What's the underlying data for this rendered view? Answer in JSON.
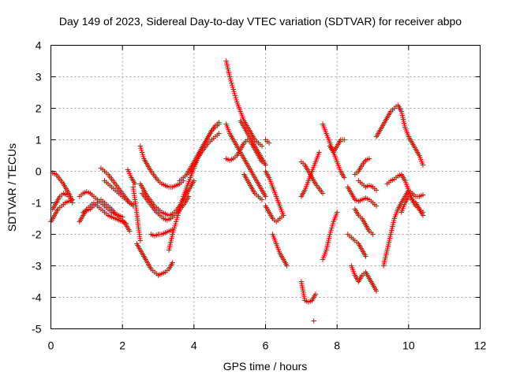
{
  "chart_data": {
    "type": "scatter",
    "title": "Day 149 of 2023, Sidereal Day-to-day VTEC variation (SDTVAR) for receiver abpo",
    "xlabel": "GPS time / hours",
    "ylabel": "SDTVAR / TECUs",
    "xlim": [
      0,
      12
    ],
    "ylim": [
      -5,
      4
    ],
    "xticks": [
      0,
      2,
      4,
      6,
      8,
      10,
      12
    ],
    "yticks": [
      -5,
      -4,
      -3,
      -2,
      -1,
      0,
      1,
      2,
      3,
      4
    ],
    "grid": true,
    "marker": "+",
    "marker_color": "#ff0000",
    "series": [
      {
        "name": "SDTVAR",
        "tracks": [
          {
            "x": [
              0.0,
              0.1,
              0.2,
              0.3,
              0.4,
              0.5,
              0.6
            ],
            "y": [
              -1.6,
              -1.4,
              -1.2,
              -1.1,
              -1.0,
              -0.95,
              -0.9
            ]
          },
          {
            "x": [
              0.05,
              0.15,
              0.25,
              0.35,
              0.45,
              0.55,
              0.6
            ],
            "y": [
              -0.05,
              -0.1,
              -0.25,
              -0.4,
              -0.6,
              -0.8,
              -1.0
            ]
          },
          {
            "x": [
              0.05,
              0.15,
              0.25,
              0.35,
              0.45,
              0.55
            ],
            "y": [
              -1.2,
              -1.0,
              -0.8,
              -0.7,
              -0.75,
              -0.85
            ]
          },
          {
            "x": [
              0.8,
              0.9,
              1.0,
              1.1,
              1.2,
              1.3,
              1.4,
              1.5,
              1.6,
              1.7,
              1.8,
              1.9,
              2.0,
              2.1
            ],
            "y": [
              -1.6,
              -1.4,
              -1.2,
              -1.1,
              -1.0,
              -1.1,
              -1.2,
              -1.3,
              -1.4,
              -1.45,
              -1.5,
              -1.55,
              -1.6,
              -1.65
            ]
          },
          {
            "x": [
              0.8,
              0.9,
              1.0,
              1.1,
              1.2,
              1.3,
              1.4,
              1.5,
              1.6,
              1.7,
              1.8,
              1.9,
              2.0
            ],
            "y": [
              -0.8,
              -0.7,
              -0.65,
              -0.7,
              -0.8,
              -0.9,
              -1.0,
              -1.1,
              -1.2,
              -1.3,
              -1.35,
              -1.4,
              -1.45
            ]
          },
          {
            "x": [
              0.9,
              1.0,
              1.1,
              1.2,
              1.3,
              1.4,
              1.5,
              1.6,
              1.7,
              1.8,
              1.9,
              2.0,
              2.1,
              2.2
            ],
            "y": [
              -1.3,
              -1.25,
              -1.2,
              -1.1,
              -1.0,
              -0.9,
              -1.0,
              -1.1,
              -1.2,
              -1.35,
              -1.45,
              -1.55,
              -1.7,
              -1.9
            ]
          },
          {
            "x": [
              1.4,
              1.5,
              1.6,
              1.7,
              1.8,
              1.9,
              2.0,
              2.1,
              2.2,
              2.3
            ],
            "y": [
              0.1,
              0.0,
              -0.1,
              -0.25,
              -0.4,
              -0.55,
              -0.7,
              -0.85,
              -1.0,
              -1.1
            ]
          },
          {
            "x": [
              1.5,
              1.6,
              1.7,
              1.8,
              1.9,
              2.0,
              2.1,
              2.2,
              2.3
            ],
            "y": [
              -0.3,
              -0.4,
              -0.5,
              -0.6,
              -0.7,
              -0.8,
              -0.9,
              -1.0,
              -1.05
            ]
          },
          {
            "x": [
              2.3,
              2.35,
              2.4,
              2.45,
              2.5
            ],
            "y": [
              -0.5,
              -0.9,
              -1.3,
              -1.8,
              -2.2
            ]
          },
          {
            "x": [
              2.15,
              2.25,
              2.35
            ],
            "y": [
              0.05,
              -0.2,
              -0.4
            ]
          },
          {
            "x": [
              2.5,
              2.55,
              2.6,
              2.7,
              2.8,
              2.9,
              3.0,
              3.1,
              3.2,
              3.3,
              3.4,
              3.5,
              3.6,
              3.7
            ],
            "y": [
              0.8,
              0.6,
              0.4,
              0.2,
              0.0,
              -0.15,
              -0.3,
              -0.4,
              -0.45,
              -0.5,
              -0.5,
              -0.45,
              -0.4,
              -0.3
            ]
          },
          {
            "x": [
              2.5,
              2.6,
              2.7,
              2.8,
              2.9,
              3.0,
              3.1,
              3.2,
              3.3,
              3.4,
              3.5,
              3.6,
              3.7,
              3.8,
              3.9,
              4.0
            ],
            "y": [
              -0.4,
              -0.6,
              -0.8,
              -0.95,
              -1.1,
              -1.2,
              -1.3,
              -1.35,
              -1.4,
              -1.35,
              -1.25,
              -1.1,
              -0.9,
              -0.7,
              -0.5,
              -0.3
            ]
          },
          {
            "x": [
              2.55,
              2.65,
              2.75,
              2.85,
              2.95,
              3.05,
              3.15,
              3.25,
              3.35,
              3.45,
              3.55,
              3.65,
              3.75,
              3.85
            ],
            "y": [
              -0.7,
              -0.85,
              -1.0,
              -1.15,
              -1.3,
              -1.4,
              -1.5,
              -1.55,
              -1.5,
              -1.4,
              -1.3,
              -1.15,
              -1.0,
              -0.8
            ]
          },
          {
            "x": [
              2.6,
              2.7,
              2.8,
              2.9,
              3.0,
              3.1,
              3.2,
              3.3,
              3.4
            ],
            "y": [
              -2.7,
              -2.9,
              -3.1,
              -3.2,
              -3.3,
              -3.25,
              -3.2,
              -3.1,
              -2.9
            ]
          },
          {
            "x": [
              2.4,
              2.5,
              2.6
            ],
            "y": [
              -2.3,
              -2.5,
              -2.7
            ]
          },
          {
            "x": [
              2.8,
              2.9,
              3.0,
              3.1,
              3.2,
              3.3,
              3.4
            ],
            "y": [
              -2.0,
              -2.05,
              -2.0,
              -2.0,
              -1.95,
              -1.9,
              -1.85
            ]
          },
          {
            "x": [
              3.3,
              3.4,
              3.5,
              3.6,
              3.7,
              3.8,
              3.9,
              4.0,
              4.1,
              4.2,
              4.3,
              4.4,
              4.5,
              4.6,
              4.7
            ],
            "y": [
              -2.5,
              -2.0,
              -1.6,
              -1.2,
              -0.8,
              -0.5,
              -0.2,
              0.1,
              0.4,
              0.7,
              0.9,
              1.1,
              1.3,
              1.4,
              1.5
            ]
          },
          {
            "x": [
              3.6,
              3.7,
              3.8,
              3.9,
              4.0,
              4.1,
              4.2,
              4.3,
              4.4,
              4.5,
              4.6,
              4.7
            ],
            "y": [
              -0.3,
              -0.2,
              -0.1,
              0.1,
              0.3,
              0.5,
              0.7,
              0.9,
              1.1,
              1.3,
              1.45,
              1.55
            ]
          },
          {
            "x": [
              3.9,
              4.0,
              4.1,
              4.2,
              4.3,
              4.4,
              4.5,
              4.6,
              4.7
            ],
            "y": [
              0.0,
              0.2,
              0.4,
              0.6,
              0.75,
              0.9,
              1.0,
              1.1,
              1.2
            ]
          },
          {
            "x": [
              4.9,
              5.0,
              5.1,
              5.2,
              5.3,
              5.4,
              5.5,
              5.6,
              5.7,
              5.8,
              5.9
            ],
            "y": [
              3.5,
              3.0,
              2.6,
              2.2,
              1.9,
              1.6,
              1.4,
              1.2,
              1.0,
              0.9,
              0.8
            ]
          },
          {
            "x": [
              4.9,
              5.0,
              5.1,
              5.2,
              5.3,
              5.4,
              5.5,
              5.6,
              5.7,
              5.8,
              5.9,
              6.0
            ],
            "y": [
              1.5,
              1.2,
              1.0,
              0.8,
              0.6,
              0.4,
              0.2,
              0.0,
              -0.2,
              -0.4,
              -0.6,
              -0.8
            ]
          },
          {
            "x": [
              4.9,
              5.0,
              5.1,
              5.2,
              5.3,
              5.4,
              5.5,
              5.6,
              5.7,
              5.8,
              5.9
            ],
            "y": [
              0.4,
              0.35,
              0.4,
              0.5,
              0.7,
              0.9,
              1.0,
              0.9,
              0.7,
              0.5,
              0.3
            ]
          },
          {
            "x": [
              5.3,
              5.4,
              5.5,
              5.6,
              5.7,
              5.8,
              5.9,
              6.0
            ],
            "y": [
              1.6,
              1.4,
              1.2,
              1.0,
              0.8,
              0.6,
              0.4,
              0.2
            ]
          },
          {
            "x": [
              5.4,
              5.5,
              5.6,
              5.7,
              5.8,
              5.9
            ],
            "y": [
              -0.1,
              -0.3,
              -0.5,
              -0.7,
              -0.8,
              -0.9
            ]
          },
          {
            "x": [
              6.0,
              6.05,
              6.1
            ],
            "y": [
              1.0,
              0.95,
              0.9
            ]
          },
          {
            "x": [
              6.0,
              6.1,
              6.2,
              6.3,
              6.4,
              6.5
            ],
            "y": [
              0.0,
              -0.2,
              -0.5,
              -0.8,
              -1.1,
              -1.4
            ]
          },
          {
            "x": [
              6.0,
              6.1,
              6.2,
              6.3,
              6.4,
              6.5
            ],
            "y": [
              -1.1,
              -1.3,
              -1.5,
              -1.6,
              -1.5,
              -1.4
            ]
          },
          {
            "x": [
              6.2,
              6.3,
              6.4,
              6.5,
              6.6
            ],
            "y": [
              -2.0,
              -2.3,
              -2.6,
              -2.8,
              -3.0
            ]
          },
          {
            "x": [
              7.0,
              7.05,
              7.1,
              7.2,
              7.3,
              7.4
            ],
            "y": [
              -3.5,
              -3.8,
              -4.1,
              -4.15,
              -4.1,
              -3.9
            ]
          },
          {
            "x": [
              7.35
            ],
            "y": [
              -4.75
            ]
          },
          {
            "x": [
              7.0,
              7.1,
              7.2,
              7.3,
              7.4,
              7.5,
              7.6
            ],
            "y": [
              0.3,
              0.2,
              0.0,
              -0.2,
              -0.4,
              -0.55,
              -0.7
            ]
          },
          {
            "x": [
              7.0,
              7.1,
              7.2,
              7.3,
              7.4,
              7.5
            ],
            "y": [
              -0.8,
              -0.6,
              -0.3,
              0.0,
              0.3,
              0.6
            ]
          },
          {
            "x": [
              7.6,
              7.7,
              7.8,
              7.9,
              8.0,
              8.1,
              8.2
            ],
            "y": [
              1.5,
              1.2,
              0.9,
              0.6,
              0.3,
              0.0,
              -0.2
            ]
          },
          {
            "x": [
              7.6,
              7.7,
              7.8,
              7.9,
              8.0
            ],
            "y": [
              -2.8,
              -2.5,
              -2.0,
              -1.6,
              -1.3
            ]
          },
          {
            "x": [
              7.8,
              7.9,
              8.0,
              8.1,
              8.2
            ],
            "y": [
              0.8,
              0.6,
              0.8,
              1.0,
              1.0
            ]
          },
          {
            "x": [
              8.3,
              8.4,
              8.5,
              8.6,
              8.7,
              8.8,
              8.9,
              9.0,
              9.1
            ],
            "y": [
              -0.5,
              -0.7,
              -0.9,
              -0.95,
              -0.9,
              -0.85,
              -0.9,
              -1.0,
              -1.1
            ]
          },
          {
            "x": [
              8.3,
              8.4,
              8.5,
              8.6,
              8.7,
              8.8
            ],
            "y": [
              -2.0,
              -2.1,
              -2.2,
              -2.3,
              -2.5,
              -2.7
            ]
          },
          {
            "x": [
              8.4,
              8.5,
              8.6,
              8.7,
              8.8,
              8.9,
              9.0,
              9.1
            ],
            "y": [
              -3.0,
              -3.3,
              -3.5,
              -3.3,
              -3.2,
              -3.4,
              -3.6,
              -3.8
            ]
          },
          {
            "x": [
              8.5,
              8.6,
              8.7,
              8.8,
              8.9
            ],
            "y": [
              -0.1,
              0.0,
              0.2,
              0.35,
              0.4
            ]
          },
          {
            "x": [
              8.5,
              8.6,
              8.7,
              8.8,
              8.9,
              9.0
            ],
            "y": [
              -1.2,
              -1.4,
              -1.5,
              -1.7,
              -1.9,
              -2.0
            ]
          },
          {
            "x": [
              8.6,
              8.7,
              8.8,
              8.9,
              9.0,
              9.1
            ],
            "y": [
              -0.3,
              -0.4,
              -0.5,
              -0.45,
              -0.5,
              -0.6
            ]
          },
          {
            "x": [
              9.1,
              9.2,
              9.3,
              9.4,
              9.5,
              9.6,
              9.7,
              9.8,
              9.9,
              10.0,
              10.1,
              10.2,
              10.3,
              10.4
            ],
            "y": [
              1.1,
              1.3,
              1.5,
              1.7,
              1.9,
              2.0,
              2.1,
              1.9,
              1.4,
              1.1,
              0.9,
              0.7,
              0.5,
              0.2
            ]
          },
          {
            "x": [
              9.3,
              9.4,
              9.5,
              9.6,
              9.7,
              9.8,
              9.9,
              10.0,
              10.1,
              10.2,
              10.3,
              10.4
            ],
            "y": [
              -3.0,
              -2.5,
              -2.0,
              -1.5,
              -1.2,
              -1.0,
              -0.8,
              -0.6,
              -0.7,
              -0.8,
              -0.8,
              -0.75
            ]
          },
          {
            "x": [
              9.4,
              9.5,
              9.6,
              9.7,
              9.8,
              9.9,
              10.0,
              10.1,
              10.2,
              10.3,
              10.4
            ],
            "y": [
              -0.4,
              -0.3,
              -0.25,
              -0.15,
              -0.1,
              -0.3,
              -0.6,
              -0.9,
              -1.1,
              -1.2,
              -1.3
            ]
          },
          {
            "x": [
              9.8,
              9.9,
              10.0,
              10.1,
              10.2,
              10.3,
              10.4
            ],
            "y": [
              -1.3,
              -1.0,
              -0.8,
              -0.9,
              -1.0,
              -1.2,
              -1.4
            ]
          }
        ]
      }
    ]
  }
}
